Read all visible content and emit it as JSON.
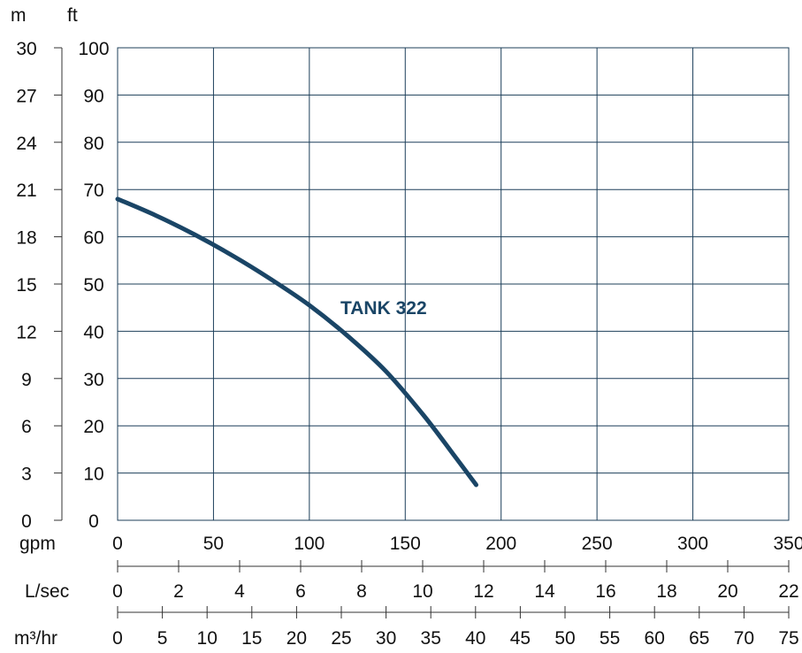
{
  "chart_data": {
    "type": "line",
    "title": "",
    "units": {
      "m": "m",
      "ft": "ft",
      "gpm": "gpm",
      "lsec": "L/sec",
      "m3hr": "m³/hr"
    },
    "y_m_ticks": [
      "30",
      "27",
      "24",
      "21",
      "18",
      "15",
      "12",
      "9",
      "6",
      "3",
      "0"
    ],
    "y_ft_ticks": [
      "100",
      "90",
      "80",
      "70",
      "60",
      "50",
      "40",
      "30",
      "20",
      "10",
      "0"
    ],
    "gpm_ticks": [
      "0",
      "50",
      "100",
      "150",
      "200",
      "250",
      "300",
      "350"
    ],
    "lsec_ticks": [
      "0",
      "2",
      "4",
      "6",
      "8",
      "10",
      "12",
      "14",
      "16",
      "18",
      "20",
      "22"
    ],
    "m3hr_ticks": [
      "0",
      "5",
      "10",
      "15",
      "20",
      "25",
      "30",
      "35",
      "40",
      "45",
      "50",
      "55",
      "60",
      "65",
      "70",
      "75"
    ],
    "x_range_gpm": [
      0,
      350
    ],
    "y_range_ft": [
      0,
      100
    ],
    "grid": true,
    "series": [
      {
        "name": "TANK 322",
        "color": "#1a4566",
        "x_gpm": [
          0,
          20,
          40,
          60,
          80,
          100,
          120,
          140,
          160,
          175,
          187
        ],
        "y_ft": [
          68,
          64.5,
          60.5,
          56,
          51,
          45.5,
          39,
          31.5,
          22,
          14,
          7.5
        ]
      }
    ]
  }
}
